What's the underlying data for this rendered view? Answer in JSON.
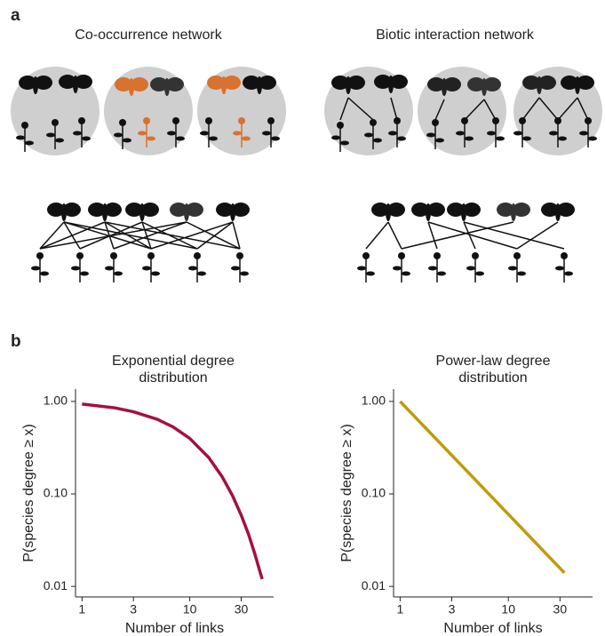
{
  "panel_labels": [
    "a",
    "b"
  ],
  "diagram": {
    "titles": [
      "Co-occurrence network",
      "Biotic interaction network"
    ]
  },
  "chart_data": [
    {
      "type": "line",
      "title": "Exponential degree distribution",
      "xlabel": "Number of links",
      "ylabel": "P(species degree ≥ x)",
      "x": [
        1,
        2,
        3,
        5,
        7,
        10,
        15,
        20,
        25,
        30,
        35,
        40,
        45,
        47
      ],
      "values": [
        0.936,
        0.853,
        0.773,
        0.64,
        0.529,
        0.398,
        0.247,
        0.153,
        0.095,
        0.059,
        0.037,
        0.0228,
        0.0142,
        0.012
      ],
      "color": "#a50f45",
      "xscale": "log",
      "yscale": "log",
      "xlim": [
        0.87,
        60
      ],
      "ylim": [
        0.0077,
        1.36
      ],
      "xticks": [
        1,
        3,
        10,
        30
      ],
      "yticks": [
        0.01,
        {
          "value": 0.1,
          "label": "0.10"
        },
        {
          "value": 1,
          "label": "1.00"
        }
      ]
    },
    {
      "type": "line",
      "title": "Power-law degree distribution",
      "xlabel": "Number of links",
      "ylabel": "P(species degree ≥ x)",
      "x": [
        1,
        3,
        10,
        33
      ],
      "values": [
        1.0,
        0.262,
        0.0603,
        0.014
      ],
      "color": "#c19a0b",
      "xscale": "log",
      "yscale": "log",
      "xlim": [
        0.87,
        60
      ],
      "ylim": [
        0.0077,
        1.36
      ],
      "xticks": [
        1,
        3,
        10,
        30
      ],
      "yticks": [
        0.01,
        {
          "value": 0.1,
          "label": "0.10"
        },
        {
          "value": 1,
          "label": "1.00"
        }
      ]
    }
  ]
}
